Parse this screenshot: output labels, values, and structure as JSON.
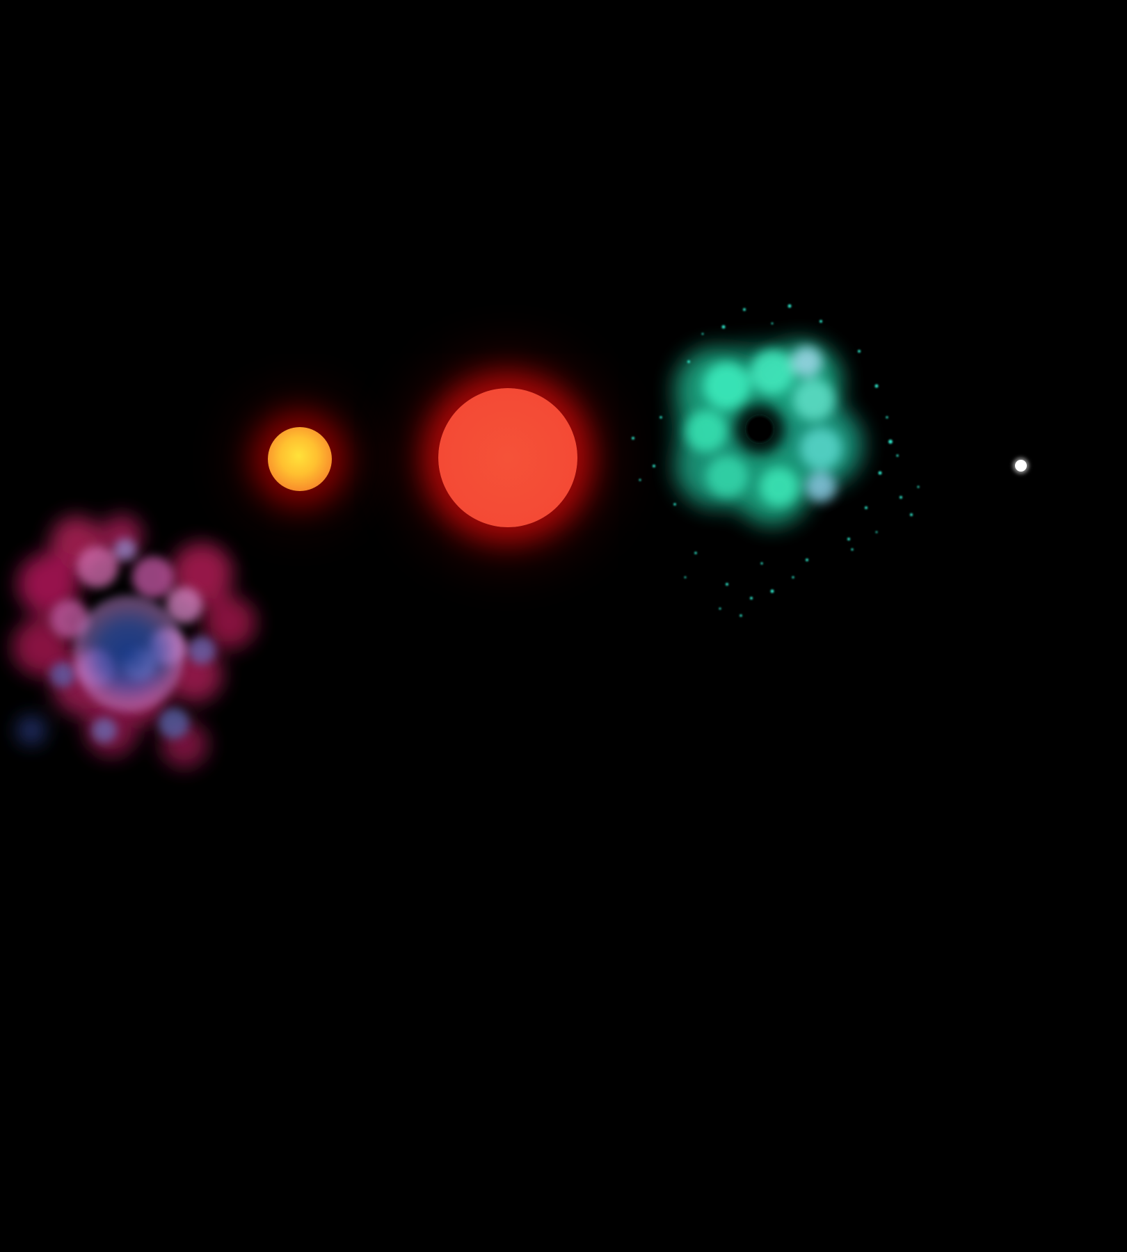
{
  "scene": {
    "background": "#000000",
    "objects": [
      {
        "name": "pink-blue-nebula",
        "colors": [
          "#c0306a",
          "#e59ad6",
          "#1e3f8c"
        ]
      },
      {
        "name": "yellow-orange-star",
        "colors": [
          "#ffe23a",
          "#f0652a"
        ]
      },
      {
        "name": "red-giant-star",
        "colors": [
          "#f44a35",
          "#e00a0a"
        ]
      },
      {
        "name": "teal-nebula-with-dark-core",
        "colors": [
          "#2ef0b0",
          "#9fe7e0",
          "#000000"
        ]
      },
      {
        "name": "white-dwarf-star",
        "colors": [
          "#ffffff"
        ]
      }
    ]
  }
}
